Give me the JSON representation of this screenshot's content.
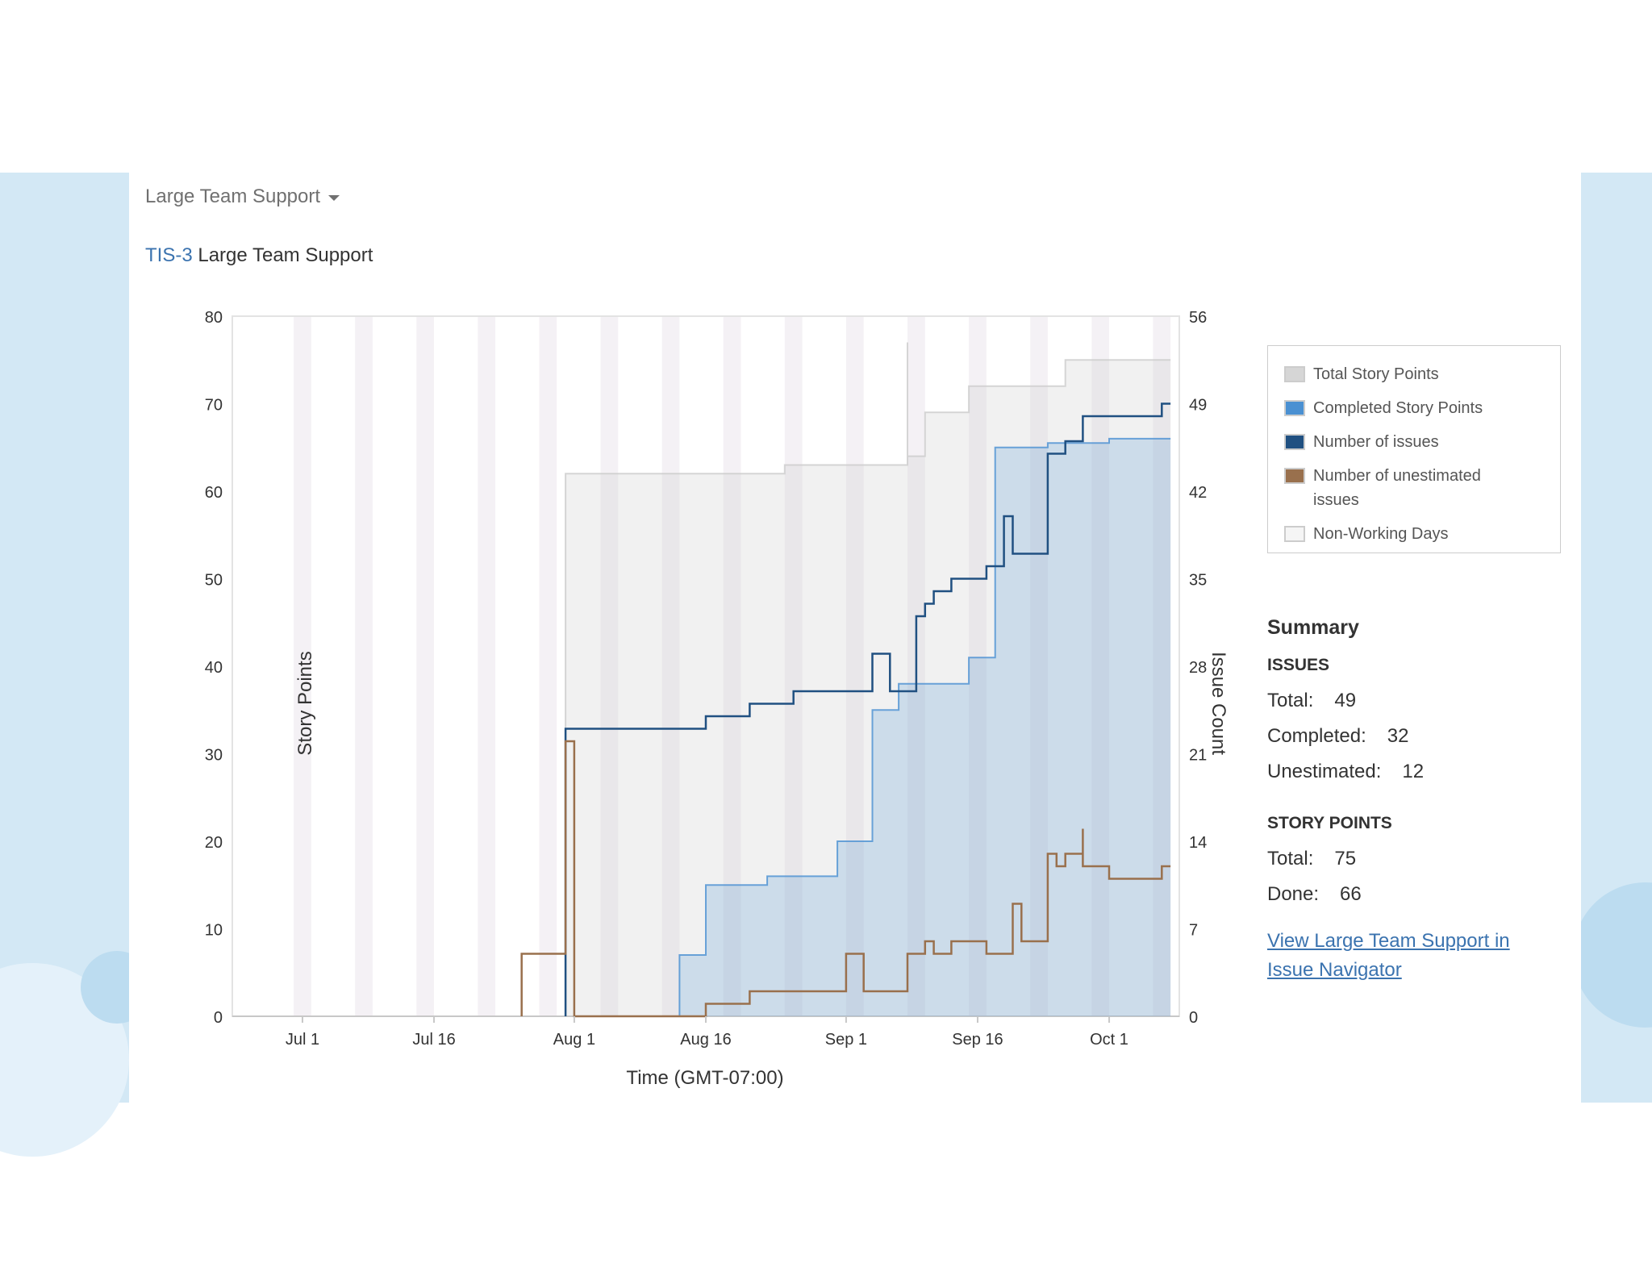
{
  "header": {
    "dropdown_label": "Large Team Support",
    "epic_key": "TIS-3",
    "epic_name": "Large Team Support"
  },
  "chart_data": {
    "type": "line",
    "xlabel": "Time (GMT-07:00)",
    "ylabel": "Story Points",
    "y2label": "Issue Count",
    "ylim": [
      0,
      80
    ],
    "y2lim": [
      0,
      56
    ],
    "yticks": [
      0,
      10,
      20,
      30,
      40,
      50,
      60,
      70,
      80
    ],
    "y2ticks": [
      0,
      7,
      14,
      21,
      28,
      35,
      42,
      49,
      56
    ],
    "xlim": [
      "2018-06-23",
      "2018-10-09"
    ],
    "xticks": [
      {
        "label": "Jul 1",
        "date": "2018-07-01"
      },
      {
        "label": "Jul 16",
        "date": "2018-07-16"
      },
      {
        "label": "Aug 1",
        "date": "2018-08-01"
      },
      {
        "label": "Aug 16",
        "date": "2018-08-16"
      },
      {
        "label": "Sep 1",
        "date": "2018-09-01"
      },
      {
        "label": "Sep 16",
        "date": "2018-09-16"
      },
      {
        "label": "Oct 1",
        "date": "2018-10-01"
      }
    ],
    "non_working_days": [
      [
        "2018-06-30",
        "2018-07-02"
      ],
      [
        "2018-07-07",
        "2018-07-09"
      ],
      [
        "2018-07-14",
        "2018-07-16"
      ],
      [
        "2018-07-21",
        "2018-07-23"
      ],
      [
        "2018-07-28",
        "2018-07-30"
      ],
      [
        "2018-08-04",
        "2018-08-06"
      ],
      [
        "2018-08-11",
        "2018-08-13"
      ],
      [
        "2018-08-18",
        "2018-08-20"
      ],
      [
        "2018-08-25",
        "2018-08-27"
      ],
      [
        "2018-09-01",
        "2018-09-03"
      ],
      [
        "2018-09-08",
        "2018-09-10"
      ],
      [
        "2018-09-15",
        "2018-09-17"
      ],
      [
        "2018-09-22",
        "2018-09-24"
      ],
      [
        "2018-09-29",
        "2018-10-01"
      ],
      [
        "2018-10-06",
        "2018-10-08"
      ]
    ],
    "series": [
      {
        "name": "Total Story Points",
        "axis": "left",
        "kind": "area",
        "color": "#cccccc",
        "points": [
          [
            "2018-07-31",
            0
          ],
          [
            "2018-07-31",
            62
          ],
          [
            "2018-08-25",
            62
          ],
          [
            "2018-08-25",
            63
          ],
          [
            "2018-09-08",
            63
          ],
          [
            "2018-09-08",
            77
          ],
          [
            "2018-09-08",
            64
          ],
          [
            "2018-09-10",
            64
          ],
          [
            "2018-09-10",
            69
          ],
          [
            "2018-09-15",
            69
          ],
          [
            "2018-09-15",
            72
          ],
          [
            "2018-09-26",
            72
          ],
          [
            "2018-09-26",
            75
          ],
          [
            "2018-10-08",
            75
          ]
        ]
      },
      {
        "name": "Completed Story Points",
        "axis": "left",
        "kind": "area",
        "color": "#4a90d2",
        "points": [
          [
            "2018-08-13",
            0
          ],
          [
            "2018-08-13",
            7
          ],
          [
            "2018-08-16",
            7
          ],
          [
            "2018-08-16",
            15
          ],
          [
            "2018-08-23",
            15
          ],
          [
            "2018-08-23",
            16
          ],
          [
            "2018-08-31",
            16
          ],
          [
            "2018-08-31",
            20
          ],
          [
            "2018-09-04",
            20
          ],
          [
            "2018-09-04",
            35
          ],
          [
            "2018-09-07",
            35
          ],
          [
            "2018-09-07",
            38
          ],
          [
            "2018-09-15",
            38
          ],
          [
            "2018-09-15",
            41
          ],
          [
            "2018-09-18",
            41
          ],
          [
            "2018-09-18",
            65
          ],
          [
            "2018-09-24",
            65
          ],
          [
            "2018-09-24",
            65.5
          ],
          [
            "2018-10-01",
            65.5
          ],
          [
            "2018-10-01",
            66
          ],
          [
            "2018-10-08",
            66
          ]
        ]
      },
      {
        "name": "Number of issues",
        "axis": "right",
        "kind": "line",
        "color": "#205081",
        "points": [
          [
            "2018-07-31",
            0
          ],
          [
            "2018-07-31",
            23
          ],
          [
            "2018-08-16",
            23
          ],
          [
            "2018-08-16",
            24
          ],
          [
            "2018-08-21",
            24
          ],
          [
            "2018-08-21",
            25
          ],
          [
            "2018-08-26",
            25
          ],
          [
            "2018-08-26",
            26
          ],
          [
            "2018-09-04",
            26
          ],
          [
            "2018-09-04",
            29
          ],
          [
            "2018-09-06",
            29
          ],
          [
            "2018-09-06",
            26
          ],
          [
            "2018-09-09",
            26
          ],
          [
            "2018-09-09",
            31
          ],
          [
            "2018-09-09",
            32
          ],
          [
            "2018-09-10",
            32
          ],
          [
            "2018-09-10",
            33
          ],
          [
            "2018-09-11",
            33
          ],
          [
            "2018-09-11",
            34
          ],
          [
            "2018-09-13",
            34
          ],
          [
            "2018-09-13",
            35
          ],
          [
            "2018-09-17",
            35
          ],
          [
            "2018-09-17",
            36
          ],
          [
            "2018-09-19",
            36
          ],
          [
            "2018-09-19",
            40
          ],
          [
            "2018-09-20",
            40
          ],
          [
            "2018-09-20",
            37
          ],
          [
            "2018-09-24",
            37
          ],
          [
            "2018-09-24",
            45
          ],
          [
            "2018-09-26",
            45
          ],
          [
            "2018-09-26",
            46
          ],
          [
            "2018-09-28",
            46
          ],
          [
            "2018-09-28",
            48
          ],
          [
            "2018-10-07",
            48
          ],
          [
            "2018-10-07",
            49
          ],
          [
            "2018-10-08",
            49
          ]
        ]
      },
      {
        "name": "Number of unestimated issues",
        "axis": "right",
        "kind": "line",
        "color": "#99704d",
        "points": [
          [
            "2018-07-26",
            0
          ],
          [
            "2018-07-26",
            5
          ],
          [
            "2018-07-31",
            5
          ],
          [
            "2018-07-31",
            22
          ],
          [
            "2018-08-01",
            22
          ],
          [
            "2018-08-01",
            0
          ],
          [
            "2018-08-16",
            0
          ],
          [
            "2018-08-16",
            1
          ],
          [
            "2018-08-21",
            1
          ],
          [
            "2018-08-21",
            2
          ],
          [
            "2018-09-01",
            2
          ],
          [
            "2018-09-01",
            5
          ],
          [
            "2018-09-03",
            5
          ],
          [
            "2018-09-03",
            2
          ],
          [
            "2018-09-08",
            2
          ],
          [
            "2018-09-08",
            5
          ],
          [
            "2018-09-10",
            5
          ],
          [
            "2018-09-10",
            6
          ],
          [
            "2018-09-11",
            6
          ],
          [
            "2018-09-11",
            5
          ],
          [
            "2018-09-13",
            5
          ],
          [
            "2018-09-13",
            6
          ],
          [
            "2018-09-17",
            6
          ],
          [
            "2018-09-17",
            5
          ],
          [
            "2018-09-20",
            5
          ],
          [
            "2018-09-20",
            9
          ],
          [
            "2018-09-21",
            9
          ],
          [
            "2018-09-21",
            6
          ],
          [
            "2018-09-24",
            6
          ],
          [
            "2018-09-24",
            13
          ],
          [
            "2018-09-25",
            13
          ],
          [
            "2018-09-25",
            12
          ],
          [
            "2018-09-26",
            12
          ],
          [
            "2018-09-26",
            13
          ],
          [
            "2018-09-28",
            13
          ],
          [
            "2018-09-28",
            15
          ],
          [
            "2018-09-28",
            12
          ],
          [
            "2018-10-01",
            12
          ],
          [
            "2018-10-01",
            11
          ],
          [
            "2018-10-07",
            11
          ],
          [
            "2018-10-07",
            12
          ],
          [
            "2018-10-08",
            12
          ]
        ]
      }
    ]
  },
  "legend": [
    {
      "label": "Total Story Points",
      "color": "#d6d6d6"
    },
    {
      "label": "Completed Story Points",
      "color": "#4a90d2"
    },
    {
      "label": "Number of issues",
      "color": "#205081"
    },
    {
      "label": "Number of unestimated issues",
      "color": "#99704d"
    },
    {
      "label": "Non-Working Days",
      "color": "#f5f5f5"
    }
  ],
  "summary": {
    "title": "Summary",
    "issues": {
      "title": "ISSUES",
      "total_label": "Total:",
      "total": "49",
      "completed_label": "Completed:",
      "completed": "32",
      "unestimated_label": "Unestimated:",
      "unestimated": "12"
    },
    "story_points": {
      "title": "STORY POINTS",
      "total_label": "Total:",
      "total": "75",
      "done_label": "Done:",
      "done": "66"
    },
    "link_text": "View Large Team Support in Issue Navigator"
  }
}
